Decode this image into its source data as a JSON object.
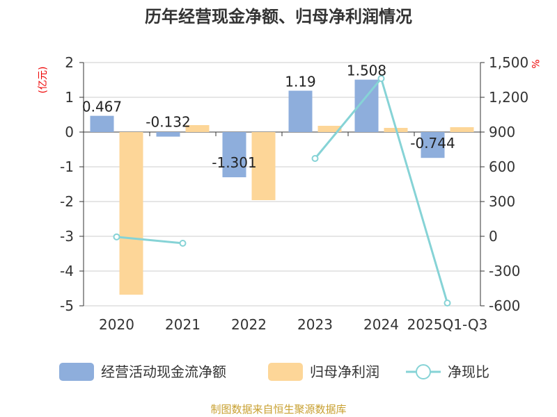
{
  "chart_data": {
    "type": "bar",
    "title": "历年经营现金净额、归母净利润情况",
    "categories": [
      "2020",
      "2021",
      "2022",
      "2023",
      "2024",
      "2025Q1-Q3"
    ],
    "left_axis": {
      "label": "(亿元)",
      "ylim": [
        -5,
        2
      ],
      "ticks": [
        2,
        1,
        0,
        -1,
        -2,
        -3,
        -4,
        -5
      ]
    },
    "right_axis": {
      "label": "%",
      "ylim": [
        -600,
        1500
      ],
      "ticks": [
        "1,500",
        "1,200",
        "900",
        "600",
        "300",
        "0",
        "-300",
        "-600"
      ],
      "tick_values": [
        1500,
        1200,
        900,
        600,
        300,
        0,
        -300,
        -600
      ]
    },
    "series": [
      {
        "name": "经营活动现金流净额",
        "type": "bar",
        "axis": "left",
        "color": "#8eaedc",
        "values": [
          0.467,
          -0.132,
          -1.301,
          1.19,
          1.508,
          -0.744
        ],
        "labels": [
          "0.467",
          "-0.132",
          "-1.301",
          "1.19",
          "1.508",
          "-0.744"
        ]
      },
      {
        "name": "归母净利润",
        "type": "bar",
        "axis": "left",
        "color": "#fdd698",
        "values": [
          -4.68,
          0.2,
          -1.96,
          0.18,
          0.12,
          0.14
        ]
      },
      {
        "name": "净现比",
        "type": "line",
        "axis": "right",
        "color": "#86d3d6",
        "values": [
          -5,
          -60,
          null,
          672,
          1362,
          -576
        ]
      }
    ],
    "grid": true,
    "legend_position": "bottom"
  },
  "footer": "制图数据来自恒生聚源数据库"
}
